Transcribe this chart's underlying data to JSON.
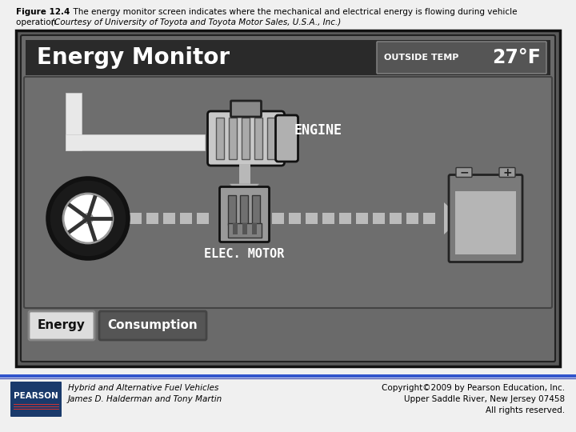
{
  "fig_width": 7.2,
  "fig_height": 5.4,
  "dpi": 100,
  "bg_color": "#f0f0f0",
  "monitor_outer_color": "#5a5a5a",
  "monitor_inner_color": "#7a7a7a",
  "header_bg": "#2a2a2a",
  "header_text_color": "#ffffff",
  "temp_box_bg": "#555555",
  "diag_bg": "#6e6e6e",
  "diag_border": "#444444",
  "pipe_color": "#e8e8e8",
  "arrow_color": "#aaaaaa",
  "engine_color": "#cccccc",
  "wheel_outer": "#111111",
  "wheel_inner": "#ffffff",
  "motor_color": "#999999",
  "battery_color": "#888888",
  "battery_cell": "#b0b0b0",
  "seg_color": "#bbbbbb",
  "btn_energy_bg": "#dddddd",
  "btn_energy_fg": "#111111",
  "btn_cons_bg": "#555555",
  "btn_cons_fg": "#ffffff",
  "sep_color1": "#3355cc",
  "sep_color2": "#2233aa",
  "pearson_bg": "#1a3a6b",
  "footer_text_color": "#111111",
  "energy_monitor_title": "Energy Monitor",
  "outside_temp_label": "OUTSIDE TEMP",
  "temp_value": "27°F",
  "engine_label": "ENGINE",
  "elec_motor_label": "ELEC. MOTOR",
  "energy_btn": "Energy",
  "consumption_btn": "Consumption",
  "pearson_text": "PEARSON",
  "footer_left_line1": "Hybrid and Alternative Fuel Vehicles",
  "footer_left_line2": "James D. Halderman and Tony Martin",
  "footer_right_line1": "Copyright©2009 by Pearson Education, Inc.",
  "footer_right_line2": "Upper Saddle River, New Jersey 07458",
  "footer_right_line3": "All rights reserved."
}
